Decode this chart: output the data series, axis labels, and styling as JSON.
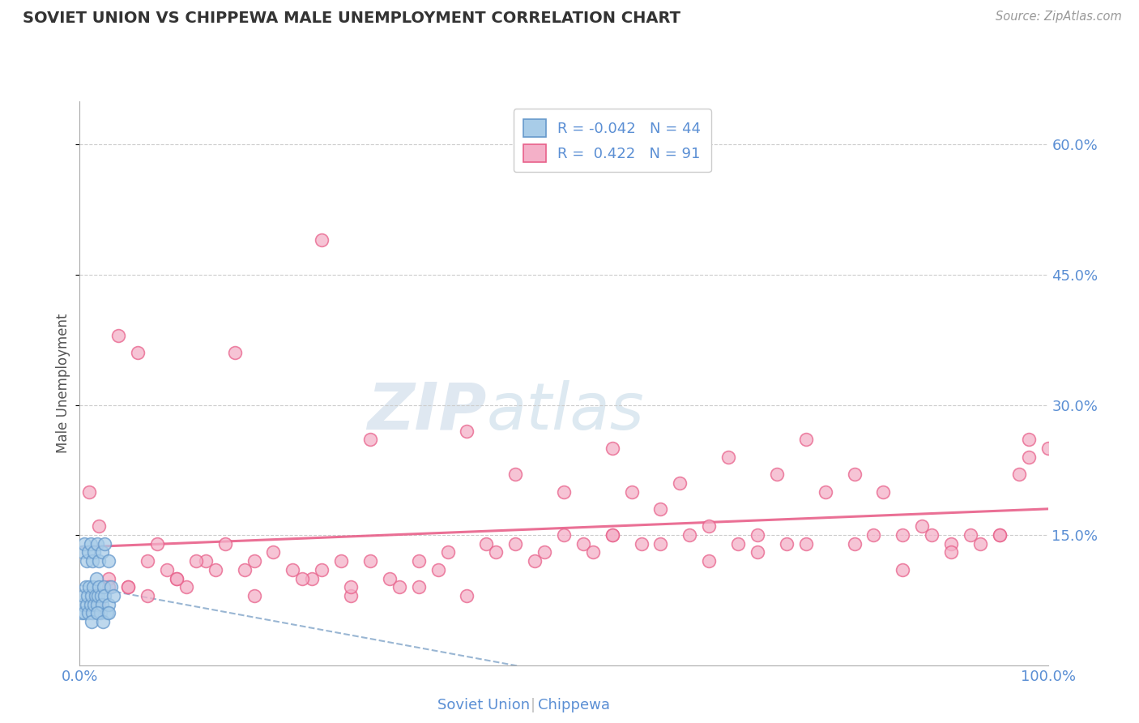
{
  "title": "SOVIET UNION VS CHIPPEWA MALE UNEMPLOYMENT CORRELATION CHART",
  "source_text": "Source: ZipAtlas.com",
  "ylabel": "Male Unemployment",
  "xlim": [
    0,
    100
  ],
  "ylim": [
    0,
    65
  ],
  "yticks": [
    15,
    30,
    45,
    60
  ],
  "ytick_labels": [
    "15.0%",
    "30.0%",
    "45.0%",
    "60.0%"
  ],
  "xticks": [
    0,
    100
  ],
  "xtick_labels": [
    "0.0%",
    "100.0%"
  ],
  "color_soviet": "#A8CCE8",
  "color_soviet_edge": "#6699CC",
  "color_chippewa": "#F4B0C8",
  "color_chippewa_edge": "#E8608A",
  "color_soviet_line": "#88AACC",
  "color_chippewa_line": "#E8608A",
  "background_color": "#FFFFFF",
  "grid_color": "#CCCCCC",
  "watermark_zip": "ZIP",
  "watermark_atlas": "atlas",
  "soviet_x": [
    0.2,
    0.3,
    0.4,
    0.5,
    0.6,
    0.7,
    0.8,
    0.9,
    1.0,
    1.1,
    1.2,
    1.3,
    1.4,
    1.5,
    1.6,
    1.7,
    1.8,
    1.9,
    2.0,
    2.1,
    2.2,
    2.3,
    2.5,
    2.6,
    2.8,
    3.0,
    3.2,
    3.5,
    0.3,
    0.5,
    0.7,
    0.9,
    1.1,
    1.3,
    1.5,
    1.8,
    2.0,
    2.3,
    2.6,
    3.0,
    1.2,
    1.8,
    2.4,
    3.0
  ],
  "soviet_y": [
    6,
    7,
    8,
    6,
    9,
    7,
    8,
    6,
    9,
    7,
    8,
    6,
    9,
    7,
    8,
    10,
    7,
    8,
    9,
    6,
    8,
    7,
    9,
    8,
    6,
    7,
    9,
    8,
    13,
    14,
    12,
    13,
    14,
    12,
    13,
    14,
    12,
    13,
    14,
    12,
    5,
    6,
    5,
    6
  ],
  "chippewa_x": [
    1.0,
    2.0,
    3.0,
    5.0,
    7.0,
    9.0,
    10.0,
    11.0,
    13.0,
    15.0,
    17.0,
    18.0,
    20.0,
    22.0,
    24.0,
    25.0,
    27.0,
    28.0,
    30.0,
    32.0,
    33.0,
    35.0,
    37.0,
    38.0,
    40.0,
    42.0,
    43.0,
    45.0,
    47.0,
    48.0,
    50.0,
    52.0,
    53.0,
    55.0,
    57.0,
    58.0,
    60.0,
    62.0,
    63.0,
    65.0,
    67.0,
    68.0,
    70.0,
    72.0,
    73.0,
    75.0,
    77.0,
    80.0,
    82.0,
    83.0,
    85.0,
    87.0,
    88.0,
    90.0,
    92.0,
    93.0,
    95.0,
    97.0,
    98.0,
    100.0,
    4.0,
    6.0,
    8.0,
    12.0,
    16.0,
    30.0,
    45.0,
    60.0,
    75.0,
    90.0,
    3.0,
    7.0,
    14.0,
    23.0,
    35.0,
    50.0,
    65.0,
    80.0,
    95.0,
    2.0,
    5.0,
    10.0,
    18.0,
    28.0,
    40.0,
    55.0,
    70.0,
    85.0,
    98.0,
    25.0,
    55.0
  ],
  "chippewa_y": [
    20,
    7,
    10,
    9,
    8,
    11,
    10,
    9,
    12,
    14,
    11,
    12,
    13,
    11,
    10,
    11,
    12,
    8,
    12,
    10,
    9,
    12,
    11,
    13,
    27,
    14,
    13,
    14,
    12,
    13,
    15,
    14,
    13,
    15,
    20,
    14,
    14,
    21,
    15,
    16,
    24,
    14,
    15,
    22,
    14,
    14,
    20,
    22,
    15,
    20,
    15,
    16,
    15,
    14,
    15,
    14,
    15,
    22,
    24,
    25,
    38,
    36,
    14,
    12,
    36,
    26,
    22,
    18,
    26,
    13,
    9,
    12,
    11,
    10,
    9,
    20,
    12,
    14,
    15,
    16,
    9,
    10,
    8,
    9,
    8,
    15,
    13,
    11,
    26,
    49,
    25
  ]
}
